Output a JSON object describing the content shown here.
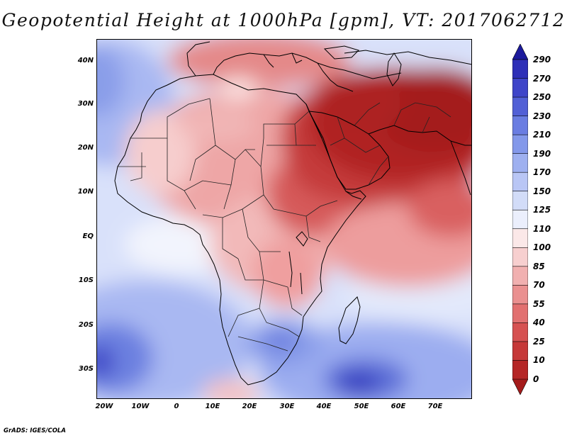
{
  "title": "Geopotential Height at 1000hPa [gpm], VT: 2017062712",
  "credit": "GrADS: IGES/COLA",
  "map": {
    "variable": "Geopotential Height",
    "level": "1000hPa",
    "units": "gpm",
    "valid_time": "2017062712",
    "lat_ticks": [
      "40N",
      "30N",
      "20N",
      "10N",
      "EQ",
      "10S",
      "20S",
      "30S"
    ],
    "lon_ticks": [
      "20W",
      "10W",
      "0",
      "10E",
      "20E",
      "30E",
      "40E",
      "50E",
      "60E",
      "70E"
    ]
  },
  "colorbar": {
    "labels": [
      "290",
      "270",
      "250",
      "230",
      "210",
      "190",
      "170",
      "150",
      "125",
      "110",
      "100",
      "85",
      "70",
      "55",
      "40",
      "25",
      "10",
      "0"
    ],
    "colors": [
      "#1c1a9c",
      "#2e2fb8",
      "#3f45c9",
      "#5260d6",
      "#6a7de2",
      "#8398ea",
      "#9eb0f0",
      "#b9c6f5",
      "#d2dcf8",
      "#ebeffc",
      "#fbe8e8",
      "#f7cfcf",
      "#f1b0b0",
      "#ea9090",
      "#e27070",
      "#d65151",
      "#c63838",
      "#b52626",
      "#a41b1b"
    ]
  }
}
